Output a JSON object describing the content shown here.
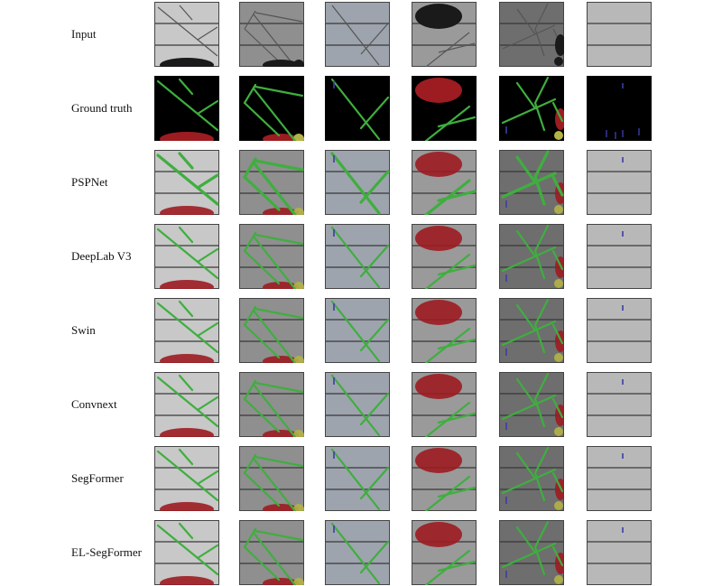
{
  "rows": [
    {
      "label": "Input"
    },
    {
      "label": "Ground truth"
    },
    {
      "label": "PSPNet"
    },
    {
      "label": "DeepLab V3"
    },
    {
      "label": "Swin"
    },
    {
      "label": "Convnext"
    },
    {
      "label": "SegFormer"
    },
    {
      "label": "EL-SegFormer"
    }
  ],
  "legend_colors": {
    "crack": "#3fae3f",
    "dark_area": "#9c1c22",
    "corrosion": "#b3b347",
    "finger": "#3c3ca8"
  },
  "background_colors": {
    "cell_tones": [
      "#c8c8c8",
      "#8f8f8f",
      "#9ea4ad",
      "#9a9a9a",
      "#6e6e6e",
      "#b8b8b8"
    ],
    "ground_truth_bg": "#000000"
  }
}
